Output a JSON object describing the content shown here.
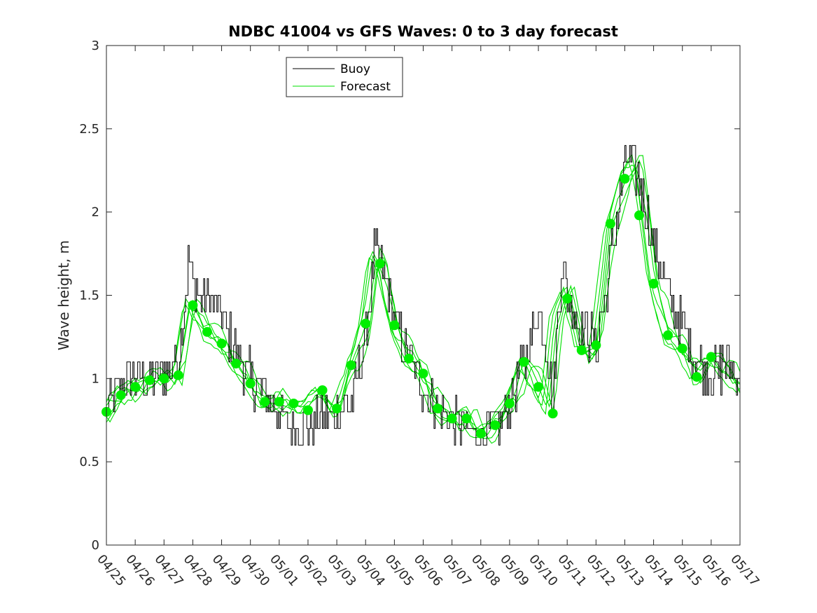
{
  "chart_data": {
    "type": "line",
    "title": "NDBC 41004 vs GFS Waves: 0 to 3 day forecast",
    "xlabel": "",
    "ylabel": "Wave height, m",
    "ylim": [
      0,
      3
    ],
    "yticks": [
      0,
      0.5,
      1,
      1.5,
      2,
      2.5,
      3
    ],
    "ytick_labels": [
      "0",
      "0.5",
      "1",
      "1.5",
      "2",
      "2.5",
      "3"
    ],
    "xlim": [
      "04/25",
      "05/17"
    ],
    "xtick_labels": [
      "04/25",
      "04/26",
      "04/27",
      "04/28",
      "04/29",
      "04/30",
      "05/01",
      "05/02",
      "05/03",
      "05/04",
      "05/05",
      "05/06",
      "05/07",
      "05/08",
      "05/09",
      "05/10",
      "05/11",
      "05/12",
      "05/13",
      "05/14",
      "05/15",
      "05/16",
      "05/17"
    ],
    "grid": false,
    "legend": {
      "location": "top-left",
      "entries": [
        "Buoy",
        "Forecast"
      ]
    },
    "colors": {
      "buoy": "#000000",
      "forecast": "#00e000",
      "markers": "#00ee00"
    },
    "buoy_anchors": {
      "day": [
        0,
        0.5,
        1,
        1.5,
        2,
        2.5,
        2.85,
        3.0,
        3.3,
        3.6,
        4,
        4.5,
        5,
        5.5,
        6,
        6.5,
        7,
        7.5,
        8,
        8.5,
        9,
        9.3,
        9.5,
        9.8,
        10,
        10.5,
        11,
        11.5,
        12,
        12.5,
        13,
        13.5,
        14,
        14.5,
        15,
        15.3,
        15.5,
        15.8,
        16,
        16.5,
        17,
        17.5,
        18,
        18.5,
        19,
        19.5,
        20,
        20.5,
        21,
        21.5,
        22
      ],
      "height": [
        0.8,
        0.95,
        1.0,
        1.0,
        1.05,
        1.1,
        1.7,
        1.6,
        1.45,
        1.5,
        1.35,
        1.15,
        1.0,
        0.9,
        0.8,
        0.7,
        0.7,
        0.75,
        0.8,
        0.85,
        1.25,
        1.75,
        1.7,
        1.5,
        1.35,
        1.1,
        0.95,
        0.8,
        0.75,
        0.7,
        0.65,
        0.7,
        0.85,
        1.1,
        1.4,
        1.2,
        0.85,
        1.7,
        1.5,
        1.3,
        1.2,
        1.7,
        2.3,
        2.2,
        1.8,
        1.5,
        1.3,
        1.1,
        1.0,
        1.1,
        1.0
      ]
    },
    "forecast_anchors": {
      "day": [
        0,
        0.5,
        1,
        1.5,
        2,
        2.5,
        2.9,
        3.5,
        4,
        4.5,
        5,
        5.5,
        6,
        6.5,
        7,
        7.5,
        8,
        8.5,
        9,
        9.3,
        9.5,
        10,
        10.5,
        11,
        11.5,
        12,
        12.5,
        13,
        13.5,
        14,
        14.5,
        15,
        15.3,
        15.6,
        16,
        16.5,
        17,
        17.5,
        18,
        18.4,
        18.7,
        19,
        19.5,
        20,
        20.5,
        21,
        21.5,
        22
      ],
      "height": [
        0.8,
        0.9,
        0.95,
        0.99,
        1.0,
        1.02,
        1.47,
        1.28,
        1.21,
        1.09,
        0.97,
        0.86,
        0.86,
        0.85,
        0.81,
        0.93,
        0.82,
        1.08,
        1.33,
        1.73,
        1.69,
        1.32,
        1.12,
        1.03,
        0.82,
        0.76,
        0.76,
        0.67,
        0.72,
        0.85,
        1.1,
        0.95,
        0.85,
        1.35,
        1.5,
        1.17,
        1.2,
        1.93,
        2.2,
        2.3,
        1.98,
        1.57,
        1.26,
        1.18,
        1.01,
        1.13,
        1.05,
        0.95
      ]
    },
    "markers": {
      "day": [
        0,
        0.5,
        1,
        1.5,
        2,
        2.5,
        3,
        3.5,
        4,
        4.5,
        5,
        5.5,
        6,
        6.5,
        7,
        7.5,
        8,
        8.5,
        9,
        9.5,
        10,
        10.5,
        11,
        11.5,
        12,
        12.5,
        13,
        13.5,
        14,
        14.5,
        15,
        15.5,
        16,
        16.5,
        17,
        17.5,
        18,
        18.5,
        19,
        19.5,
        20,
        20.5,
        21
      ],
      "height": [
        0.8,
        0.9,
        0.95,
        0.99,
        1.0,
        1.02,
        1.44,
        1.28,
        1.21,
        1.09,
        0.97,
        0.86,
        0.86,
        0.85,
        0.81,
        0.93,
        0.82,
        1.08,
        1.33,
        1.69,
        1.32,
        1.12,
        1.03,
        0.82,
        0.76,
        0.76,
        0.67,
        0.72,
        0.85,
        1.1,
        0.95,
        0.79,
        1.48,
        1.17,
        1.2,
        1.93,
        2.2,
        1.98,
        1.57,
        1.26,
        1.18,
        1.01,
        1.13
      ]
    }
  }
}
